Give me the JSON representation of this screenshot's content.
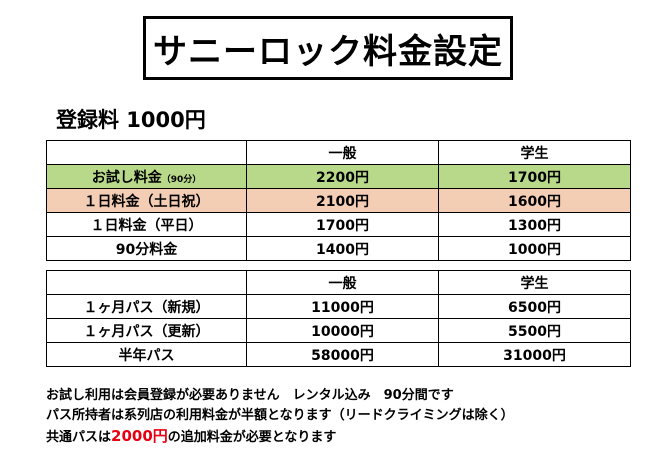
{
  "title": "サニーロック料金設定",
  "registration_fee": "登録料 1000円",
  "table1": {
    "headers": [
      "",
      "一般",
      "学生"
    ],
    "rows": [
      {
        "label": "お試し料金",
        "note": "（90分）",
        "general": "2200円",
        "student": "1700円"
      },
      {
        "label": "１日料金（土日祝）",
        "general": "2100円",
        "student": "1600円"
      },
      {
        "label": "１日料金（平日）",
        "general": "1700円",
        "student": "1300円"
      },
      {
        "label": "90分料金",
        "general": "1400円",
        "student": "1000円"
      }
    ]
  },
  "table2": {
    "headers": [
      "",
      "一般",
      "学生"
    ],
    "rows": [
      {
        "label": "１ヶ月パス（新規）",
        "general": "11000円",
        "student": "6500円"
      },
      {
        "label": "１ヶ月パス（更新）",
        "general": "10000円",
        "student": "5500円"
      },
      {
        "label": "半年パス",
        "general": "58000円",
        "student": "31000円"
      }
    ]
  },
  "notes": {
    "line1": "お試し利用は会員登録が必要ありません　レンタル込み　90分間です",
    "line2": "パス所持者は系列店の利用料金が半額となります（リードクライミングは除く）",
    "line3_prefix": "共通パスは",
    "line3_highlight": "2000円",
    "line3_suffix": "の追加料金が必要となります"
  },
  "colors": {
    "trial_row": "#b9d98a",
    "weekend_row": "#f4cdb5",
    "highlight_text": "#e60012"
  }
}
